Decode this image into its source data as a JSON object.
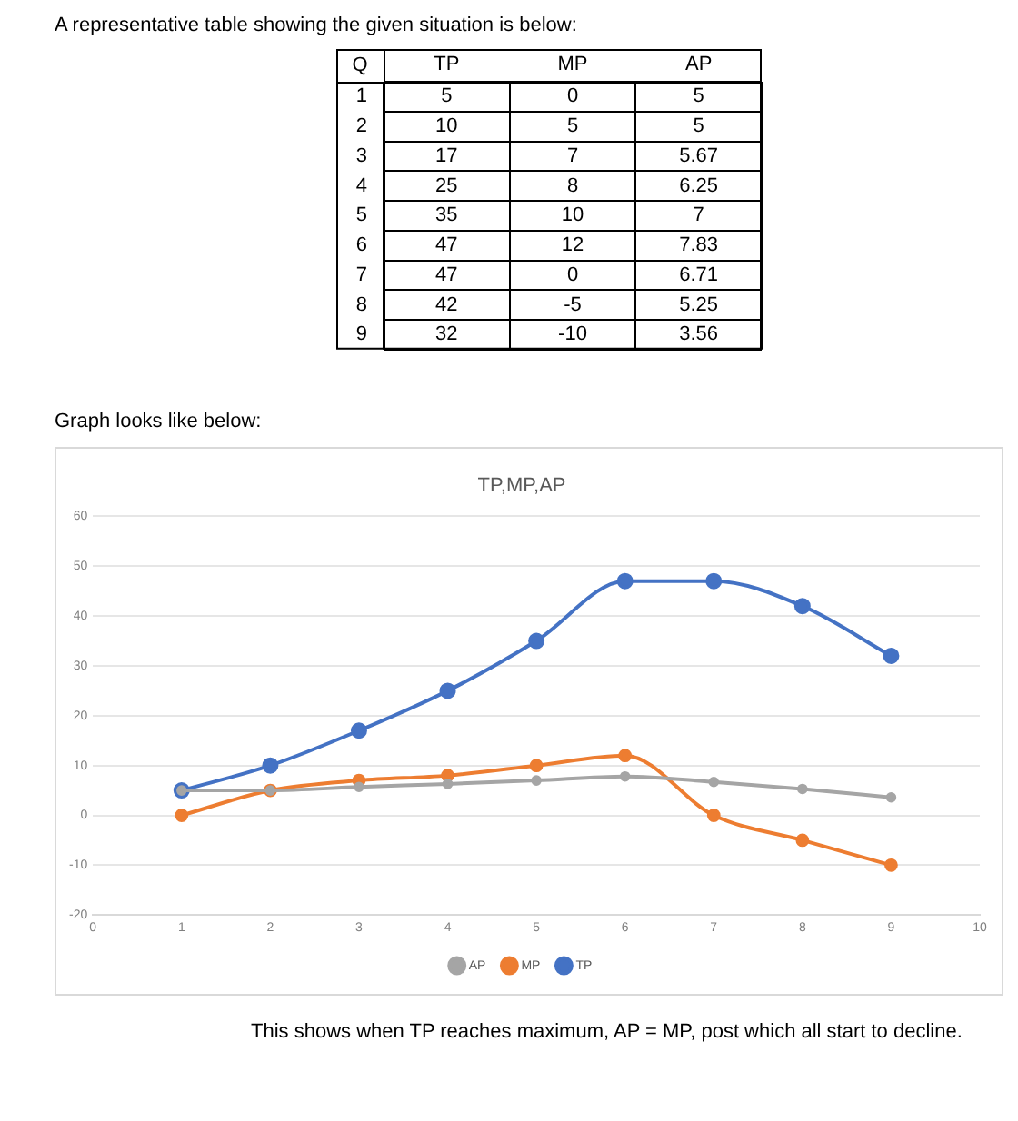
{
  "chart_data": [
    {
      "type": "heatmap",
      "ylabel": "Q",
      "data_labels": true,
      "categories": [
        "TP",
        "MP",
        "AP"
      ],
      "y_categories": [
        "1",
        "2",
        "3",
        "4",
        "5",
        "6",
        "7",
        "8",
        "9"
      ],
      "cells": [
        [
          5,
          0,
          5
        ],
        [
          10,
          5,
          5
        ],
        [
          17,
          7,
          5.67
        ],
        [
          25,
          8,
          6.25
        ],
        [
          35,
          10,
          7
        ],
        [
          47,
          12,
          7.83
        ],
        [
          47,
          0,
          6.71
        ],
        [
          42,
          -5,
          5.25
        ],
        [
          32,
          -10,
          3.56
        ]
      ],
      "annotations": [
        "A representative table showing the given situation is below:"
      ]
    },
    {
      "type": "line",
      "title": "TP,MP,AP",
      "x": [
        1,
        2,
        3,
        4,
        5,
        6,
        7,
        8,
        9
      ],
      "series": [
        {
          "name": "TP",
          "color": "#4472c4",
          "values": [
            5,
            10,
            17,
            25,
            35,
            47,
            47,
            42,
            32
          ]
        },
        {
          "name": "MP",
          "color": "#ed7d31",
          "values": [
            0,
            5,
            7,
            8,
            10,
            12,
            0,
            -5,
            -10
          ]
        },
        {
          "name": "AP",
          "color": "#a5a5a5",
          "values": [
            5,
            5,
            5.7,
            6.3,
            7,
            7.8,
            6.7,
            5.3,
            3.6
          ]
        }
      ],
      "xlim": [
        0,
        10
      ],
      "xticks": [
        0,
        1,
        2,
        3,
        4,
        5,
        6,
        7,
        8,
        9,
        10
      ],
      "ylim": [
        -20,
        60
      ],
      "yticks": [
        -20,
        -10,
        0,
        10,
        20,
        30,
        40,
        50,
        60
      ],
      "grid": "y",
      "legend": "bottom",
      "marker": "circle",
      "line_style": "solid",
      "annotations": [
        "Graph looks like below:",
        "This shows when TP reaches maximum, AP = MP, post which all start to decline."
      ]
    }
  ]
}
